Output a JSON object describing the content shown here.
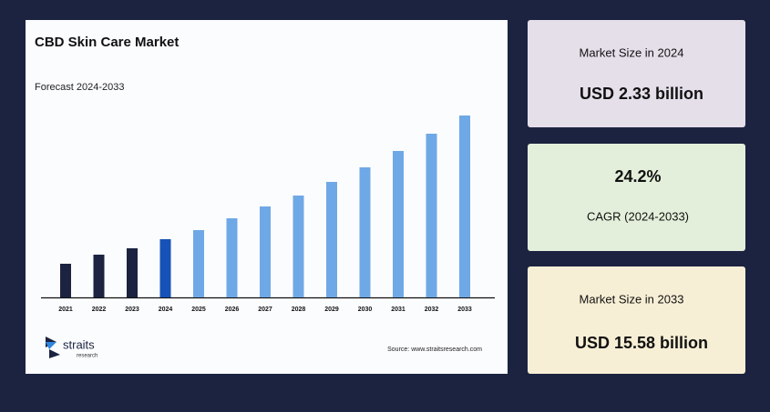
{
  "chart_data": {
    "type": "bar",
    "title": "CBD Skin Care Market",
    "subtitle": "Forecast 2024-2033",
    "categories": [
      "2021",
      "2022",
      "2023",
      "2024",
      "2025",
      "2026",
      "2027",
      "2028",
      "2029",
      "2030",
      "2031",
      "2032",
      "2033"
    ],
    "values": [
      37,
      47,
      54,
      64,
      74,
      87,
      100,
      112,
      127,
      143,
      161,
      180,
      200
    ],
    "colors": [
      "#1b2340",
      "#1b2340",
      "#1b2340",
      "#1652b8",
      "#6fa8e6",
      "#6fa8e6",
      "#6fa8e6",
      "#6fa8e6",
      "#6fa8e6",
      "#6fa8e6",
      "#6fa8e6",
      "#6fa8e6",
      "#6fa8e6"
    ],
    "ylim": [
      0,
      200
    ],
    "grid": false,
    "source": "Source: www.straitsresearch.com",
    "logo": {
      "name": "straits",
      "tagline": "research"
    }
  },
  "cards": [
    {
      "label": "Market Size in 2024",
      "value": "USD 2.33 billion"
    },
    {
      "value": "24.2%",
      "label": "CAGR (2024-2033)"
    },
    {
      "label": "Market Size in 2033",
      "value": "USD 15.58 billion"
    }
  ]
}
